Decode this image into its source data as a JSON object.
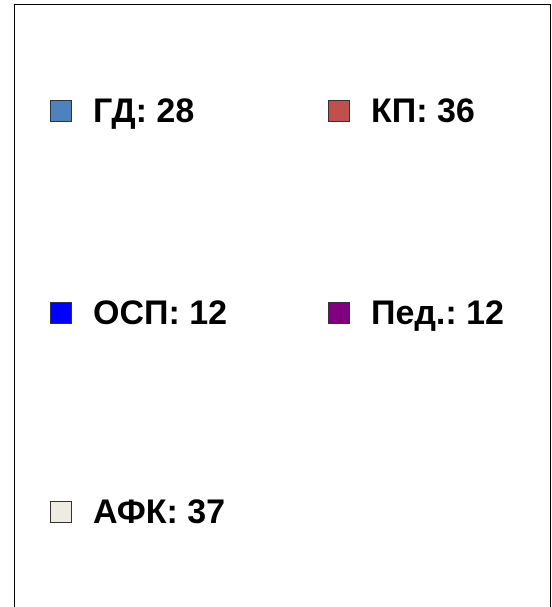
{
  "legend": {
    "items": [
      {
        "label": "ГД: 28",
        "color": "#4f81bd"
      },
      {
        "label": "КП: 36",
        "color": "#c0504d"
      },
      {
        "label": "ОСП: 12",
        "color": "#0000ff"
      },
      {
        "label": "Пед.: 12",
        "color": "#800080"
      },
      {
        "label": "АФК: 37",
        "color": "#eeece1"
      }
    ]
  }
}
